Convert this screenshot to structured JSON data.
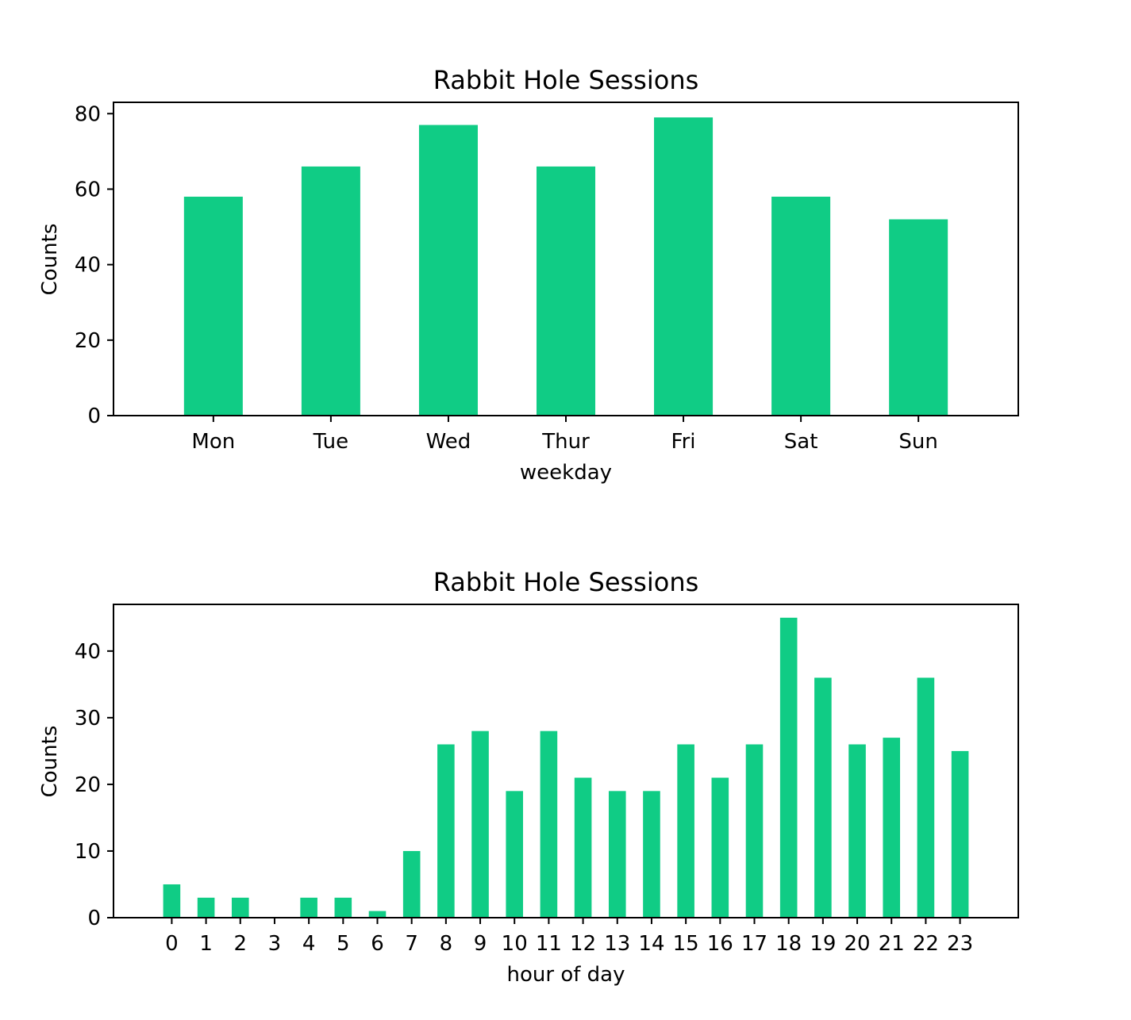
{
  "chart_data": [
    {
      "type": "bar",
      "title": "Rabbit Hole Sessions",
      "xlabel": "weekday",
      "ylabel": "Counts",
      "categories": [
        "Mon",
        "Tue",
        "Wed",
        "Thur",
        "Fri",
        "Sat",
        "Sun"
      ],
      "values": [
        58,
        66,
        77,
        66,
        79,
        58,
        52
      ],
      "ylim": [
        0,
        83
      ],
      "yticks": [
        0,
        20,
        40,
        60,
        80
      ],
      "grid": false,
      "bar_color": "#10cc85"
    },
    {
      "type": "bar",
      "title": "Rabbit Hole Sessions",
      "xlabel": "hour of day",
      "ylabel": "Counts",
      "categories": [
        "0",
        "1",
        "2",
        "3",
        "4",
        "5",
        "6",
        "7",
        "8",
        "9",
        "10",
        "11",
        "12",
        "13",
        "14",
        "15",
        "16",
        "17",
        "18",
        "19",
        "20",
        "21",
        "22",
        "23"
      ],
      "values": [
        5,
        3,
        3,
        0,
        3,
        3,
        1,
        10,
        26,
        28,
        19,
        28,
        21,
        19,
        19,
        26,
        21,
        26,
        45,
        36,
        26,
        27,
        36,
        25
      ],
      "ylim": [
        0,
        47
      ],
      "yticks": [
        0,
        10,
        20,
        30,
        40
      ],
      "grid": false,
      "bar_color": "#10cc85"
    }
  ]
}
